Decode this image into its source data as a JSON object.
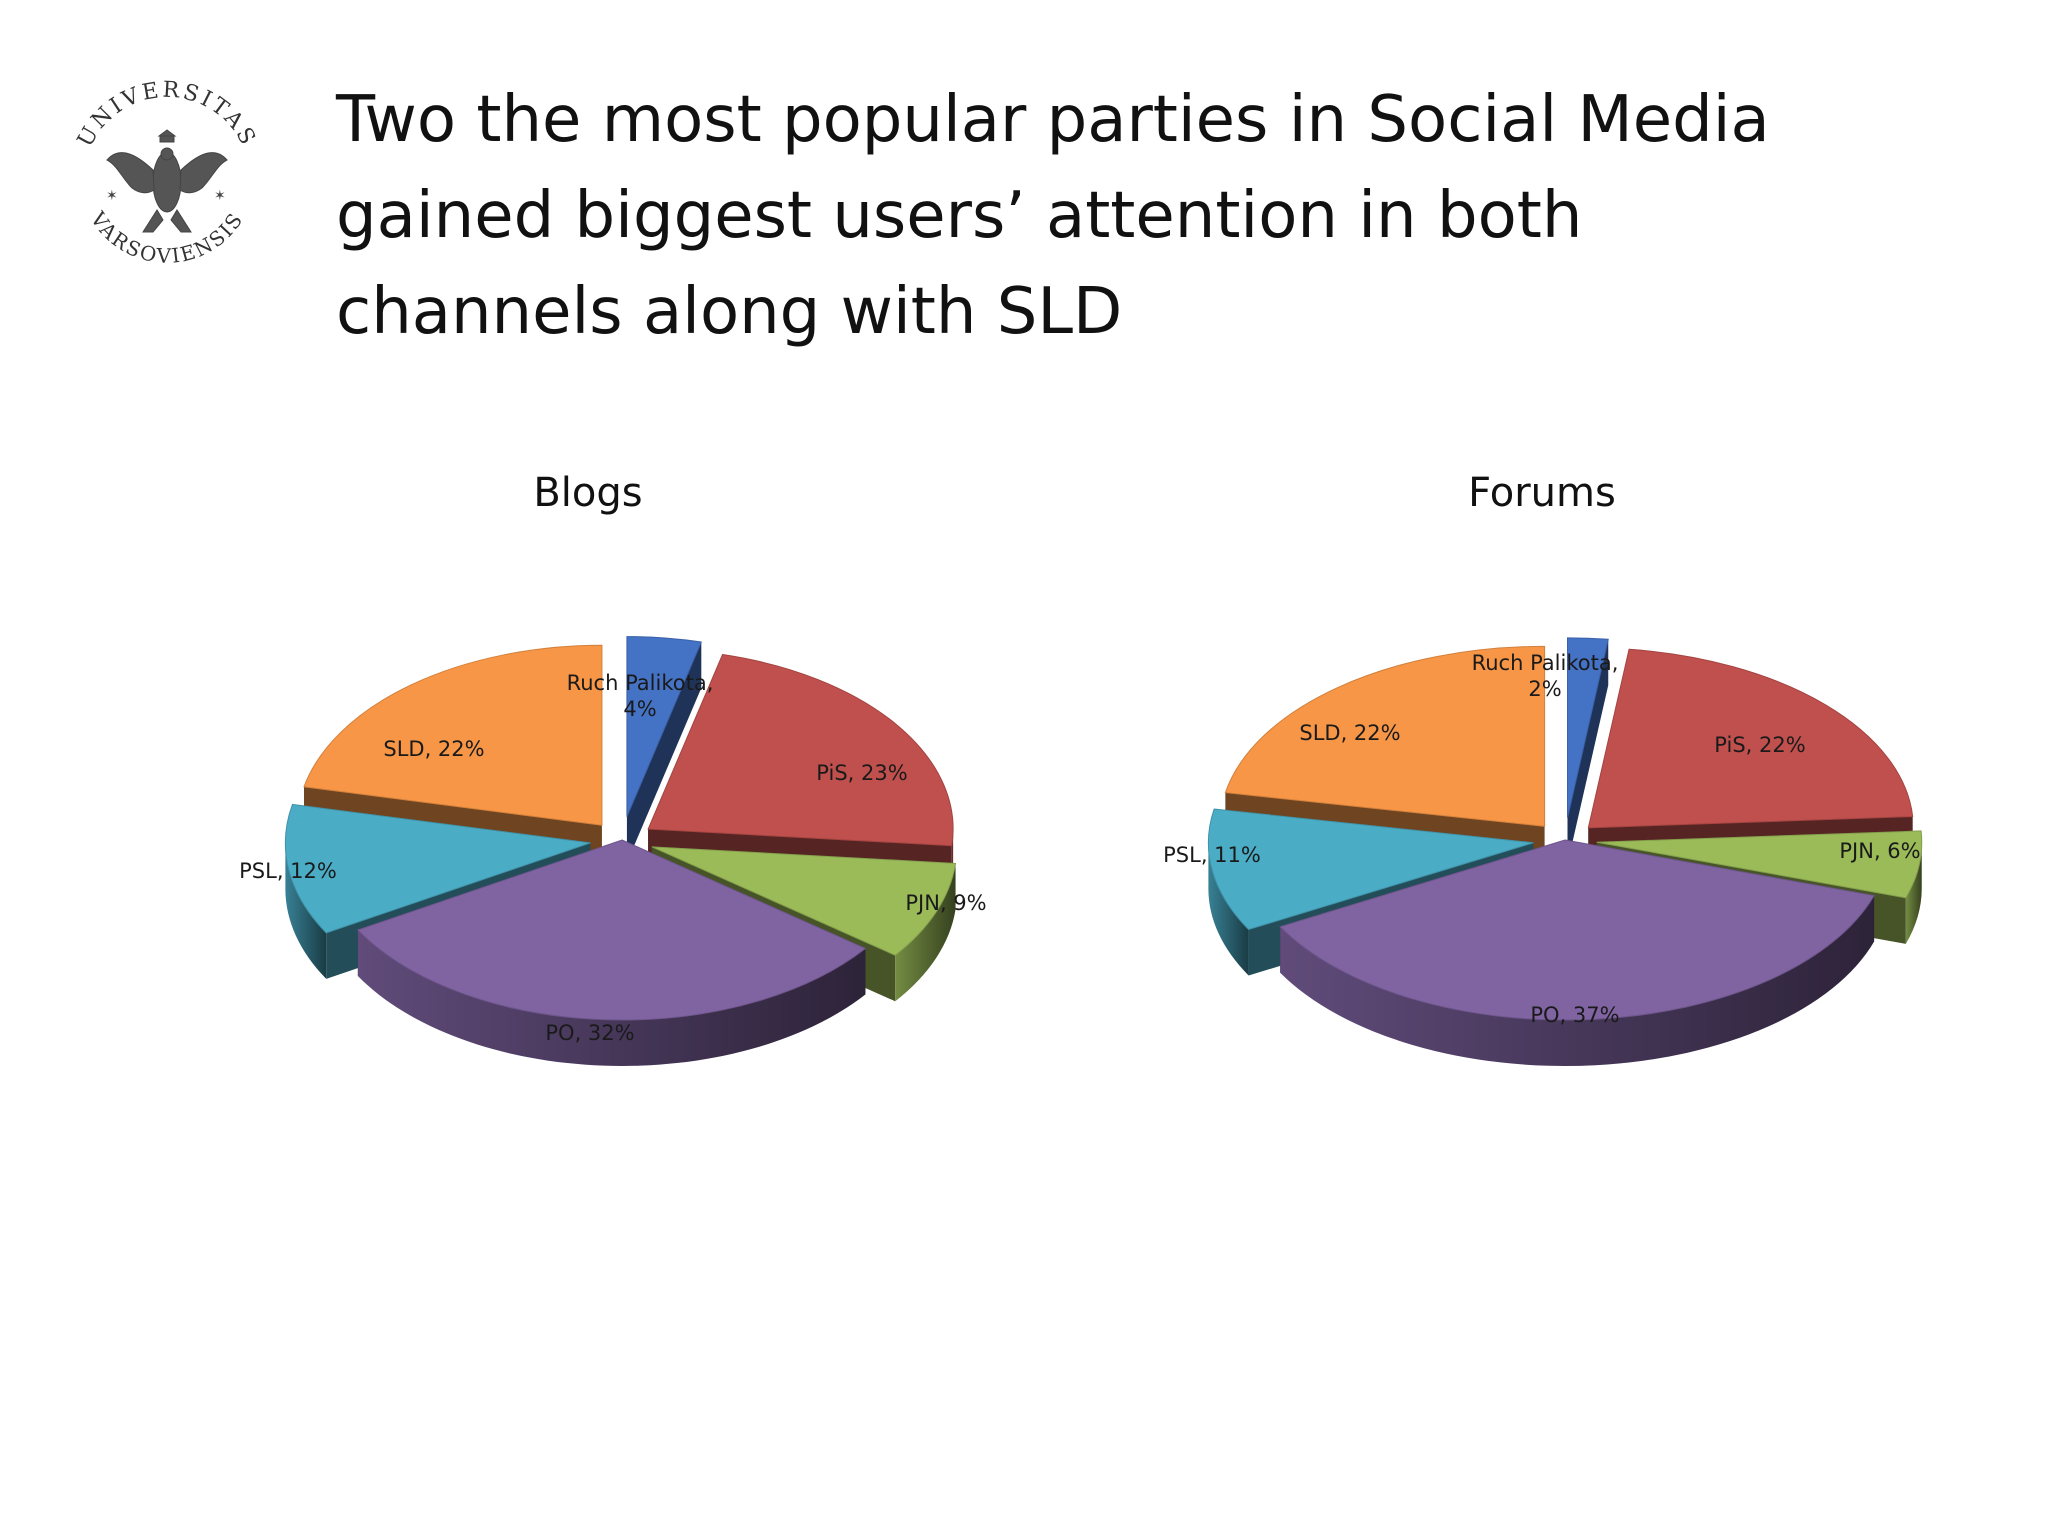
{
  "logo": {
    "icon": "university-seal-icon",
    "text_top": "UNIVERSITAS",
    "text_bottom": "VARSOVIENSIS"
  },
  "slide": {
    "title_lines": [
      "Two the most popular parties in Social Media",
      "gained biggest users’ attention in both",
      "channels along with SLD"
    ]
  },
  "chart_data": [
    {
      "type": "pie",
      "title": "Blogs",
      "categories": [
        "Ruch Palikota",
        "PiS",
        "PJN",
        "PO",
        "PSL",
        "SLD"
      ],
      "values": [
        4,
        23,
        9,
        32,
        12,
        22
      ],
      "labels": [
        "Ruch Palikota, 4%",
        "PiS, 23%",
        "PJN, 9%",
        "PO, 32%",
        "PSL, 12%",
        "SLD, 22%"
      ],
      "colors": [
        "#4472C4",
        "#C0504D",
        "#9BBB59",
        "#8064A2",
        "#4BACC6",
        "#F79646"
      ],
      "style": "3d-exploded"
    },
    {
      "type": "pie",
      "title": "Forums",
      "categories": [
        "Ruch Palikota",
        "PiS",
        "PJN",
        "PO",
        "PSL",
        "SLD"
      ],
      "values": [
        2,
        22,
        6,
        37,
        11,
        22
      ],
      "labels": [
        "Ruch Palikota, 2%",
        "PiS, 22%",
        "PJN, 6%",
        "PO, 37%",
        "PSL, 11%",
        "SLD, 22%"
      ],
      "colors": [
        "#4472C4",
        "#C0504D",
        "#9BBB59",
        "#8064A2",
        "#4BACC6",
        "#F79646"
      ],
      "style": "3d-exploded"
    }
  ]
}
